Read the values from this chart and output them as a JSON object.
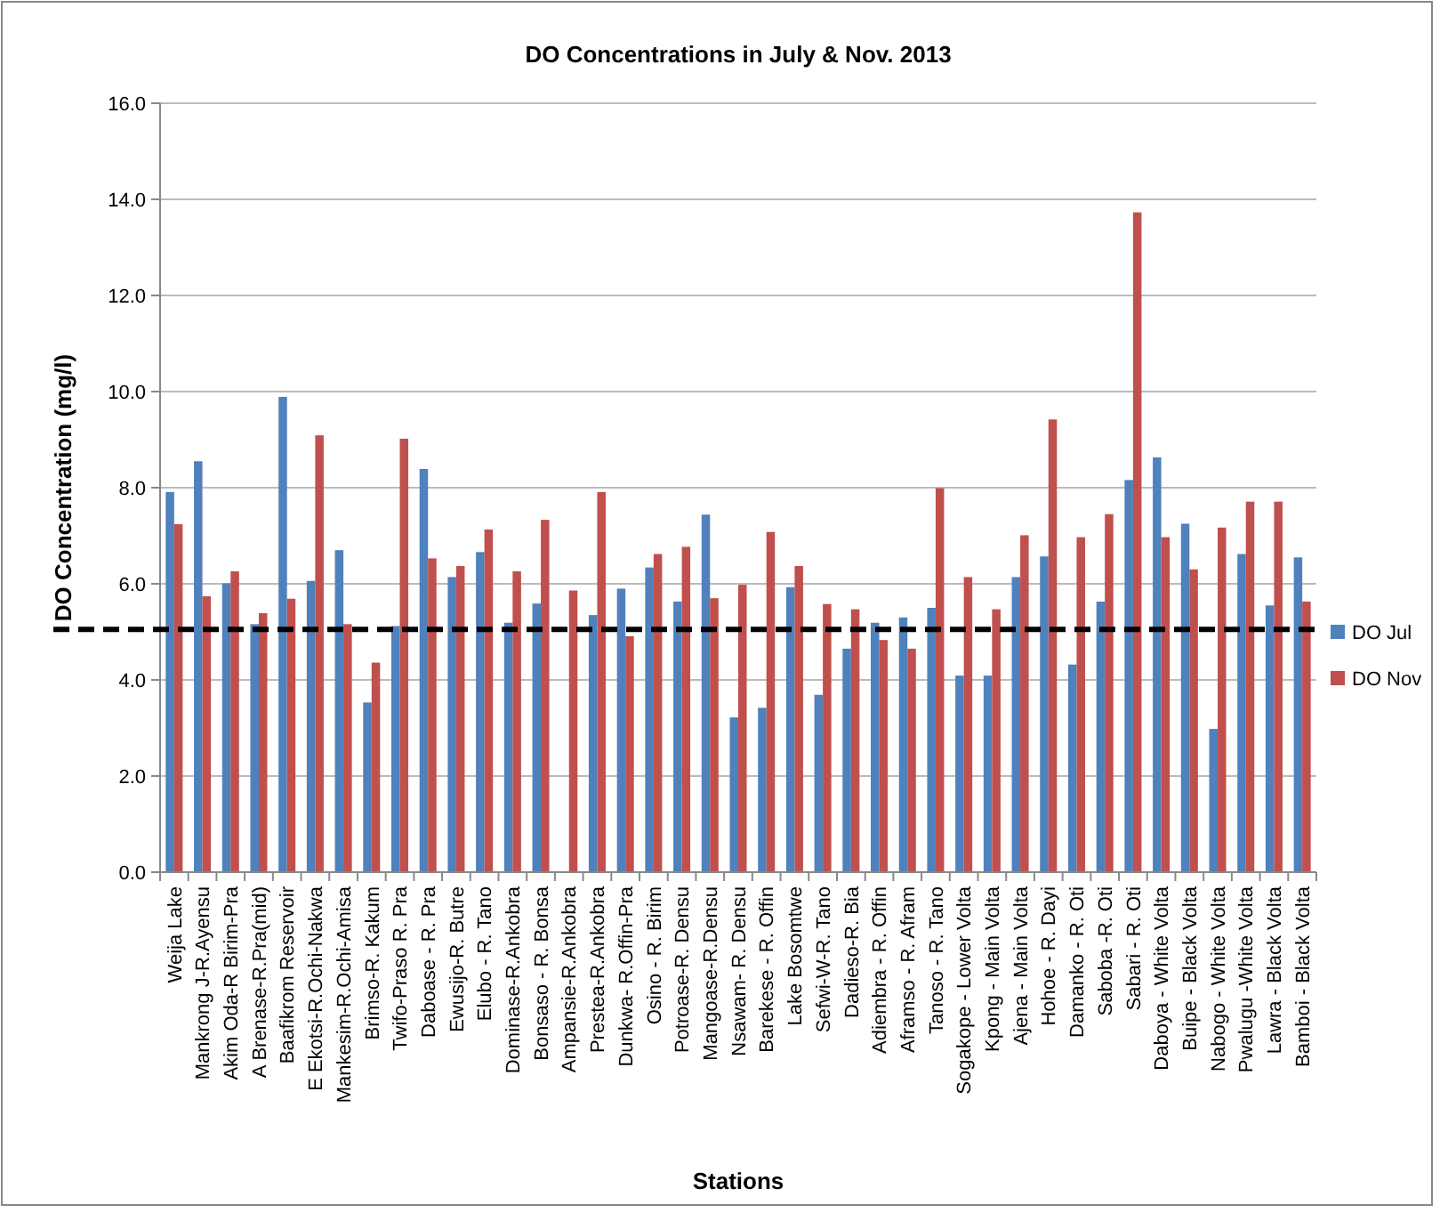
{
  "chart_data": {
    "type": "bar",
    "title": "DO Concentrations in July & Nov. 2013",
    "xlabel": "Stations",
    "ylabel": "DO Concentration (mg/l)",
    "categories": [
      "Weija Lake",
      "Mankrong J-R.Ayensu",
      "Akim Oda-R Birim-Pra",
      "A Brenase-R.Pra(mid)",
      "Baafikrom Reservoir",
      "E Ekotsi-R.Ochi-Nakwa",
      "Mankesim-R.Ochi-Amisa",
      "Brimso-R. Kakum",
      "Twifo-Praso R. Pra",
      "Daboase - R. Pra",
      "Ewusijo-R. Butre",
      "Elubo - R. Tano",
      "Dominase-R.Ankobra",
      "Bonsaso - R. Bonsa",
      "Ampansie-R.Ankobra",
      "Prestea-R.Ankobra",
      "Dunkwa- R.Offin-Pra",
      "Osino - R. Birim",
      "Potroase-R. Densu",
      "Mangoase-R.Densu",
      "Nsawam- R. Densu",
      "Barekese - R. Offin",
      "Lake Bosomtwe",
      "Sefwi-W-R. Tano",
      "Dadieso-R. Bia",
      "Adiembra - R. Offin",
      "Aframso - R. Afram",
      "Tanoso - R. Tano",
      "Sogakope - Lower Volta",
      "Kpong - Main Volta",
      "Ajena - Main Volta",
      "Hohoe - R. Dayi",
      "Damanko - R. Oti",
      "Saboba -R. Oti",
      "Sabari - R. Oti",
      "Daboya - White Volta",
      "Buipe - Black Volta",
      "Nabogo - White Volta",
      "Pwalugu -White Volta",
      "Lawra - Black Volta",
      "Bamboi - Black Volta"
    ],
    "series": [
      {
        "name": "DO Jul",
        "color": "#4f81bd",
        "values": [
          7.91,
          8.55,
          6.01,
          5.16,
          9.89,
          6.06,
          6.7,
          3.53,
          5.12,
          8.39,
          6.14,
          6.66,
          5.19,
          5.59,
          null,
          5.35,
          5.9,
          6.34,
          5.63,
          7.44,
          3.22,
          3.42,
          5.93,
          3.69,
          4.65,
          5.19,
          5.3,
          5.5,
          4.09,
          4.09,
          6.14,
          6.57,
          4.32,
          5.63,
          8.16,
          8.63,
          7.25,
          2.98,
          6.62,
          5.55,
          6.55
        ]
      },
      {
        "name": "DO Nov",
        "color": "#c0504d",
        "values": [
          7.24,
          5.74,
          6.26,
          5.39,
          5.69,
          9.09,
          5.16,
          4.36,
          9.02,
          6.53,
          6.37,
          7.13,
          6.26,
          7.33,
          5.86,
          7.91,
          4.91,
          6.62,
          6.77,
          5.7,
          5.98,
          7.08,
          6.37,
          5.58,
          5.47,
          4.83,
          4.65,
          7.99,
          6.14,
          5.47,
          7.01,
          9.42,
          6.97,
          7.45,
          13.73,
          6.97,
          6.3,
          7.17,
          7.71,
          7.71,
          5.63
        ]
      }
    ],
    "ylim": [
      0,
      16
    ],
    "yticks": [
      {
        "value": 0,
        "label": "0.0"
      },
      {
        "value": 2,
        "label": "2.0"
      },
      {
        "value": 4,
        "label": "4.0"
      },
      {
        "value": 6,
        "label": "6.0"
      },
      {
        "value": 8,
        "label": "8.0"
      },
      {
        "value": 10,
        "label": "10.0"
      },
      {
        "value": 12,
        "label": "12.0"
      },
      {
        "value": 14,
        "label": "14.0"
      },
      {
        "value": 16,
        "label": "16.0"
      }
    ],
    "ref_lines": [
      {
        "axis": "y",
        "value": 5.05,
        "color": "#000000",
        "line_style": "dashed"
      }
    ],
    "grid": "y",
    "legend": "right"
  }
}
